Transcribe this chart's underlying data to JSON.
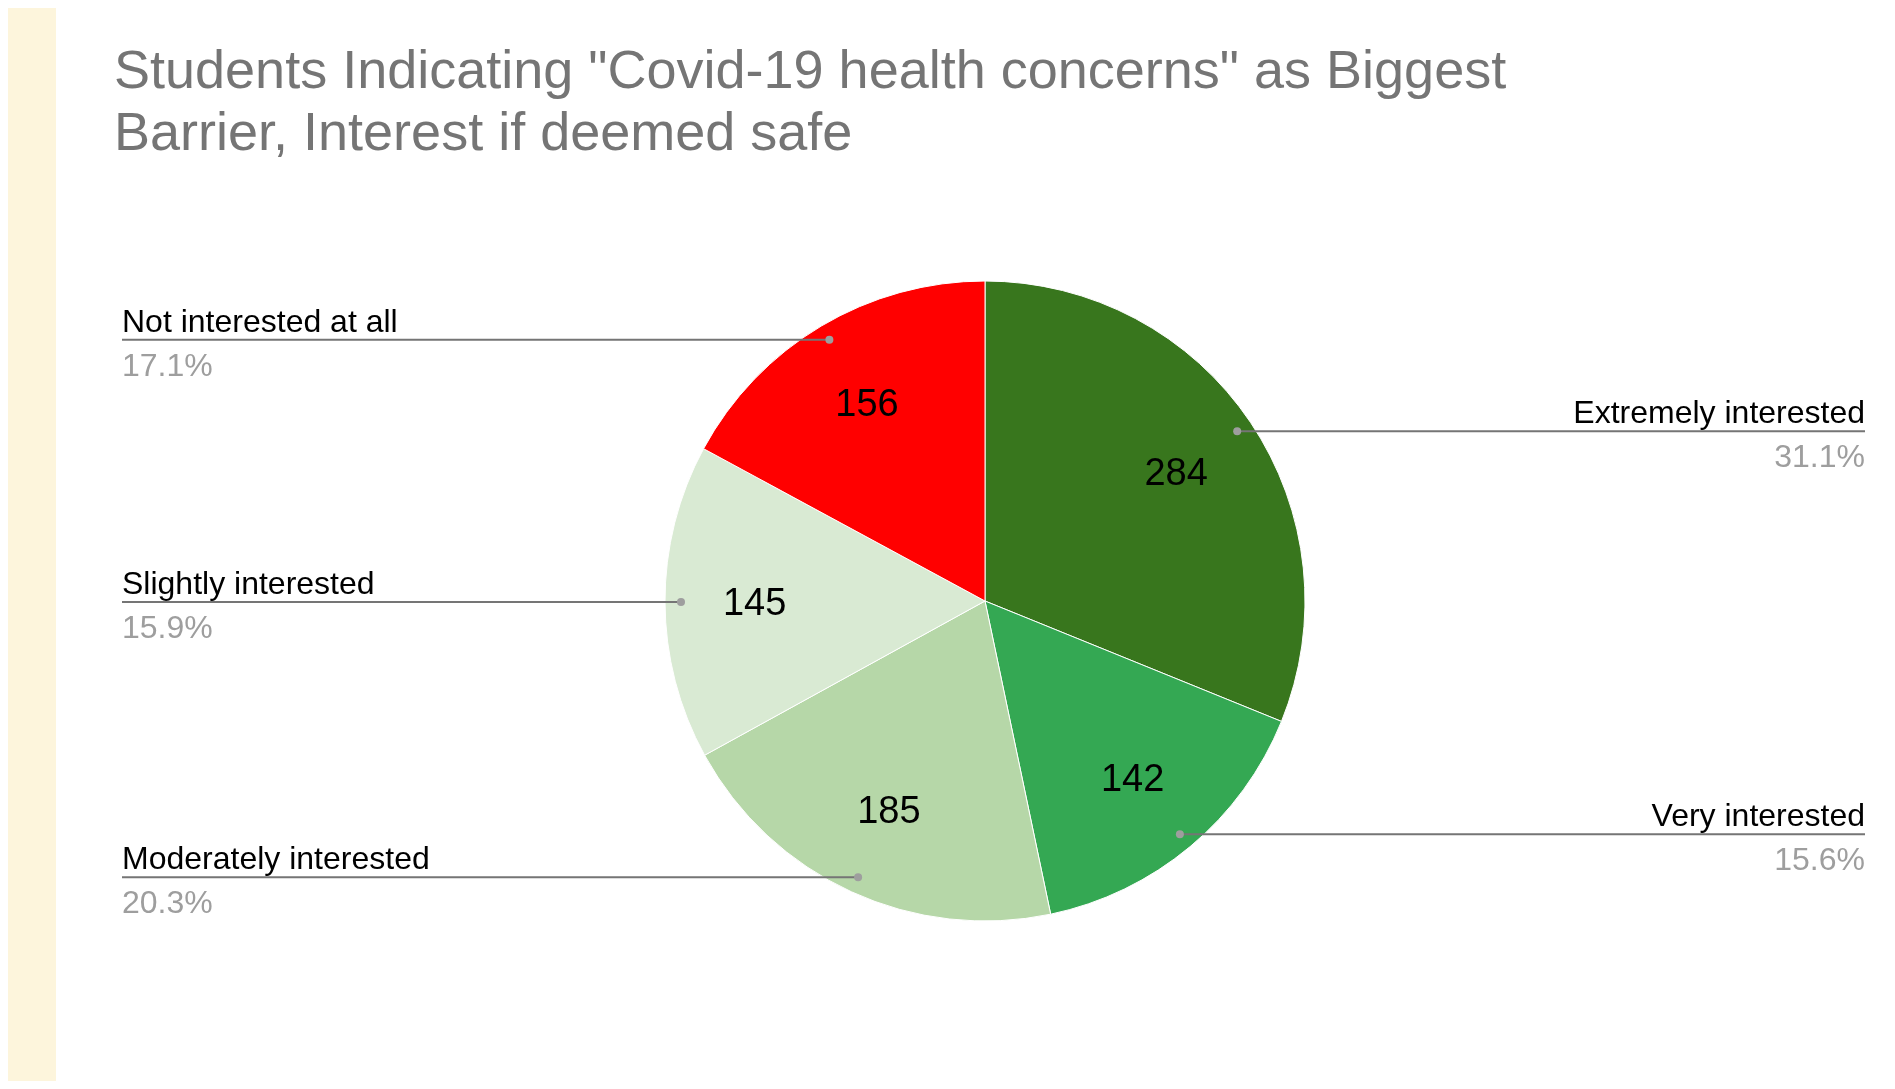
{
  "chart_data": {
    "type": "pie",
    "title": "Students Indicating \"Covid-19 health concerns\" as Biggest Barrier, Interest if deemed safe",
    "categories": [
      "Extremely interested",
      "Very interested",
      "Moderately interested",
      "Slightly interested",
      "Not interested at all"
    ],
    "values": [
      284,
      142,
      185,
      145,
      156
    ],
    "colors": [
      "#38761d",
      "#34a853",
      "#b6d7a8",
      "#d9ead3",
      "#ff0000"
    ],
    "data_labels": true,
    "annotations": [
      "31.1%",
      "15.6%",
      "20.3%",
      "15.9%",
      "17.1%"
    ]
  }
}
